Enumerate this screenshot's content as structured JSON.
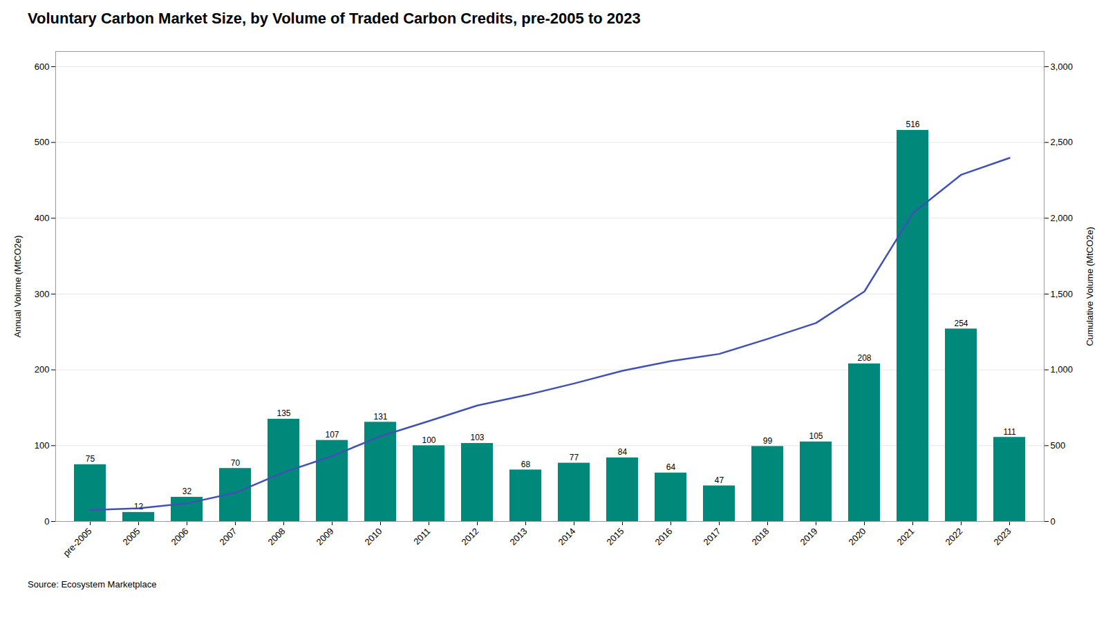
{
  "chart_data": {
    "type": "bar",
    "title": "Voluntary Carbon Market Size, by Volume of Traded Carbon Credits, pre-2005 to 2023",
    "caption": "Source: Ecosystem Marketplace",
    "categories": [
      "pre-2005",
      "2005",
      "2006",
      "2007",
      "2008",
      "2009",
      "2010",
      "2011",
      "2012",
      "2013",
      "2014",
      "2015",
      "2016",
      "2017",
      "2018",
      "2019",
      "2020",
      "2021",
      "2022",
      "2023"
    ],
    "series": [
      {
        "type": "bar",
        "color": "#00897B",
        "data_labels": true,
        "values": [
          75,
          12,
          32,
          70,
          135,
          107,
          131,
          100,
          103,
          68,
          77,
          84,
          64,
          47,
          99,
          105,
          208,
          516,
          254,
          111
        ]
      },
      {
        "type": "line",
        "axis": "y2",
        "color": "#3F51B5",
        "values": [
          75,
          87,
          119,
          189,
          324,
          431,
          562,
          662,
          765,
          833,
          910,
          994,
          1058,
          1105,
          1204,
          1309,
          1517,
          2033,
          2287,
          2398
        ]
      }
    ],
    "ylabel": "Annual Volume (MtCO2e)",
    "y2label": "Cumulative Volume (MtCO2e)",
    "ylim": [
      0,
      620
    ],
    "yticks": [
      0,
      100,
      200,
      300,
      400,
      500,
      600
    ],
    "y2lim": [
      0,
      3100
    ],
    "y2ticks": [
      0,
      500,
      1000,
      1500,
      2000,
      2500,
      3000
    ],
    "grid": true
  }
}
